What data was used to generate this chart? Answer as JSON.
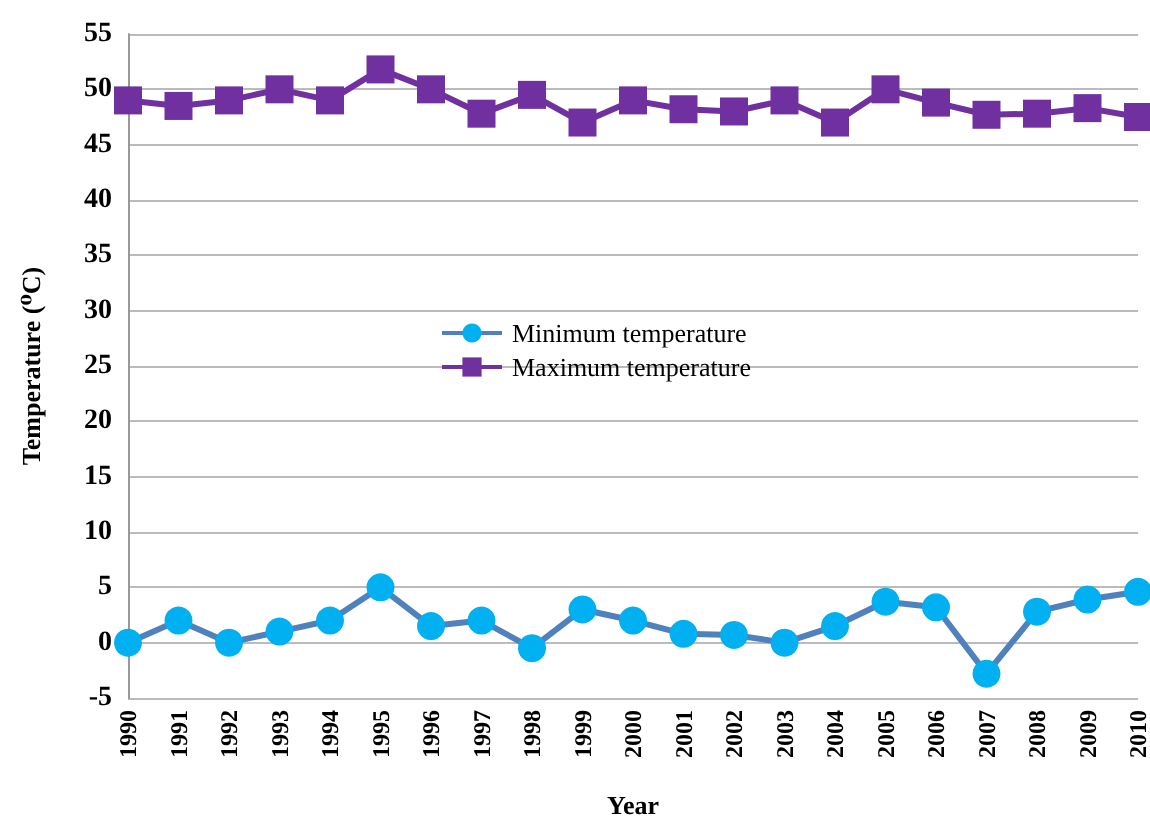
{
  "chart_data": {
    "type": "line",
    "xlabel": "Year",
    "ylabel": "Temperature (⁰C)",
    "categories": [
      "1990",
      "1991",
      "1992",
      "1993",
      "1994",
      "1995",
      "1996",
      "1997",
      "1998",
      "1999",
      "2000",
      "2001",
      "2002",
      "2003",
      "2004",
      "2005",
      "2006",
      "2007",
      "2008",
      "2009",
      "2010"
    ],
    "series": [
      {
        "name": "Minimum temperature",
        "color": "#00b0f0",
        "marker": "circle",
        "values": [
          0,
          2,
          0,
          1,
          2,
          5,
          1.5,
          2,
          -0.5,
          3,
          2,
          0.8,
          0.7,
          0,
          1.5,
          3.7,
          3.2,
          -2.8,
          2.8,
          3.9,
          4.6
        ]
      },
      {
        "name": "Maximum temperature",
        "color": "#7030a0",
        "marker": "square",
        "values": [
          49,
          48.5,
          49,
          50,
          49,
          51.8,
          50,
          47.8,
          49.5,
          47,
          49,
          48.2,
          48,
          49,
          47,
          50,
          48.8,
          47.7,
          47.8,
          48.3,
          47.5
        ]
      }
    ],
    "ylim": [
      -5,
      55
    ],
    "yticks": [
      -5,
      0,
      5,
      10,
      15,
      20,
      25,
      30,
      35,
      40,
      45,
      50,
      55
    ],
    "grid": "y",
    "legend": "center"
  }
}
